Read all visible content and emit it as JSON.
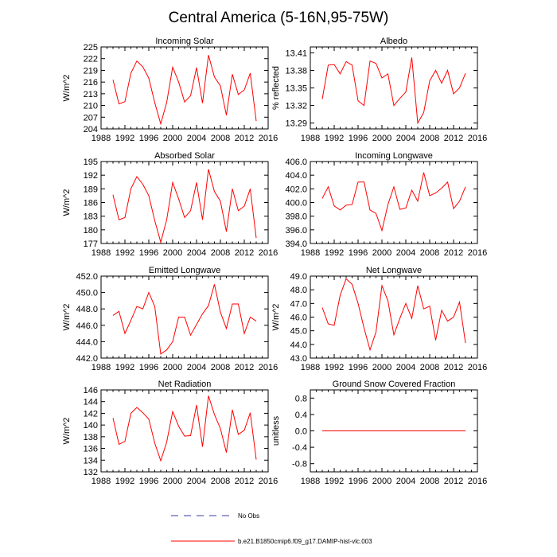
{
  "title": "Central America (5-16N,95-75W)",
  "legend": [
    {
      "label": "No Obs",
      "color": "#3a3aa0",
      "style": "dashed"
    },
    {
      "label": "b.e21.B1850cmip6.f09_g17.DAMIP-hist-vlc.003",
      "color": "#ff0000",
      "style": "solid"
    }
  ],
  "chart_data": [
    {
      "type": "line",
      "title": "Incoming Solar",
      "ylabel": "W/m^2",
      "xlim": [
        1988,
        2016
      ],
      "xticks": [
        1988,
        1992,
        1996,
        2000,
        2004,
        2008,
        2012,
        2016
      ],
      "xtick_labels": [
        "1988",
        "1992",
        "1996",
        "2000",
        "2004",
        "2008",
        "2012",
        "2016"
      ],
      "ylim": [
        204,
        225
      ],
      "yticks": [
        204,
        207,
        210,
        213,
        216,
        219,
        222,
        225
      ],
      "ytick_labels": [
        "204",
        "207",
        "210",
        "213",
        "216",
        "219",
        "222",
        "225"
      ],
      "series": [
        {
          "name": "b.e21.B1850cmip6.f09_g17.DAMIP-hist-vlc.003",
          "color": "#ff0000",
          "x": [
            1990,
            1991,
            1992,
            1993,
            1994,
            1995,
            1996,
            1997,
            1998,
            1999,
            2000,
            2001,
            2002,
            2003,
            2004,
            2005,
            2006,
            2007,
            2008,
            2009,
            2010,
            2011,
            2012,
            2013,
            2014
          ],
          "y": [
            216.6,
            210.4,
            211.0,
            218.3,
            221.4,
            219.9,
            217.0,
            210.7,
            205.3,
            210.8,
            219.8,
            216.0,
            210.9,
            212.5,
            219.7,
            210.6,
            222.9,
            217.3,
            215.0,
            207.5,
            218.0,
            212.8,
            214.0,
            218.3,
            206.0
          ]
        }
      ]
    },
    {
      "type": "line",
      "title": "Albedo",
      "ylabel": "% reflected",
      "xlim": [
        1988,
        2016
      ],
      "xticks": [
        1988,
        1992,
        1996,
        2000,
        2004,
        2008,
        2012,
        2016
      ],
      "xtick_labels": [
        "1988",
        "1992",
        "1996",
        "2000",
        "2004",
        "2008",
        "2012",
        "2016"
      ],
      "ylim": [
        13.28,
        13.42
      ],
      "yticks": [
        13.29,
        13.32,
        13.35,
        13.38,
        13.41
      ],
      "ytick_labels": [
        "13.29",
        "13.32",
        "13.35",
        "13.38",
        "13.41"
      ],
      "series": [
        {
          "name": "b.e21.B1850cmip6.f09_g17.DAMIP-hist-vlc.003",
          "color": "#ff0000",
          "x": [
            1990,
            1991,
            1992,
            1993,
            1994,
            1995,
            1996,
            1997,
            1998,
            1999,
            2000,
            2001,
            2002,
            2003,
            2004,
            2005,
            2006,
            2007,
            2008,
            2009,
            2010,
            2011,
            2012,
            2013,
            2014
          ],
          "y": [
            13.331,
            13.389,
            13.39,
            13.374,
            13.395,
            13.389,
            13.328,
            13.32,
            13.396,
            13.392,
            13.367,
            13.374,
            13.32,
            13.332,
            13.343,
            13.402,
            13.29,
            13.308,
            13.362,
            13.38,
            13.358,
            13.38,
            13.34,
            13.35,
            13.375
          ]
        }
      ]
    },
    {
      "type": "line",
      "title": "Absorbed Solar",
      "ylabel": "W/m^2",
      "xlim": [
        1988,
        2016
      ],
      "xticks": [
        1988,
        1992,
        1996,
        2000,
        2004,
        2008,
        2012,
        2016
      ],
      "xtick_labels": [
        "1988",
        "1992",
        "1996",
        "2000",
        "2004",
        "2008",
        "2012",
        "2016"
      ],
      "ylim": [
        177,
        195
      ],
      "yticks": [
        177,
        180,
        183,
        186,
        189,
        192,
        195
      ],
      "ytick_labels": [
        "177",
        "180",
        "183",
        "186",
        "189",
        "192",
        "195"
      ],
      "series": [
        {
          "name": "b.e21.B1850cmip6.f09_g17.DAMIP-hist-vlc.003",
          "color": "#ff0000",
          "x": [
            1990,
            1991,
            1992,
            1993,
            1994,
            1995,
            1996,
            1997,
            1998,
            1999,
            2000,
            2001,
            2002,
            2003,
            2004,
            2005,
            2006,
            2007,
            2008,
            2009,
            2010,
            2011,
            2012,
            2013,
            2014
          ],
          "y": [
            187.7,
            182.2,
            182.7,
            189.0,
            191.7,
            190.0,
            187.5,
            182.0,
            177.3,
            182.2,
            190.4,
            186.8,
            182.7,
            184.2,
            190.4,
            182.2,
            193.3,
            188.4,
            186.3,
            179.6,
            189.0,
            184.2,
            185.2,
            189.0,
            178.2
          ]
        }
      ]
    },
    {
      "type": "line",
      "title": "Incoming Longwave",
      "ylabel": "",
      "xlim": [
        1988,
        2016
      ],
      "xticks": [
        1988,
        1992,
        1996,
        2000,
        2004,
        2008,
        2012,
        2016
      ],
      "xtick_labels": [
        "1988",
        "1992",
        "1996",
        "2000",
        "2004",
        "2008",
        "2012",
        "2016"
      ],
      "ylim": [
        394,
        406
      ],
      "yticks": [
        394,
        396,
        398,
        400,
        402,
        404,
        406
      ],
      "ytick_labels": [
        "394.0",
        "396.0",
        "398.0",
        "400.0",
        "402.0",
        "404.0",
        "406.0"
      ],
      "series": [
        {
          "name": "b.e21.B1850cmip6.f09_g17.DAMIP-hist-vlc.003",
          "color": "#ff0000",
          "x": [
            1990,
            1991,
            1992,
            1993,
            1994,
            1995,
            1996,
            1997,
            1998,
            1999,
            2000,
            2001,
            2002,
            2003,
            2004,
            2005,
            2006,
            2007,
            2008,
            2009,
            2010,
            2011,
            2012,
            2013,
            2014
          ],
          "y": [
            400.6,
            402.3,
            399.5,
            398.9,
            399.6,
            399.7,
            403.0,
            403.0,
            398.9,
            398.4,
            395.9,
            399.7,
            402.3,
            399.0,
            399.2,
            401.8,
            400.2,
            404.4,
            401.0,
            401.4,
            402.1,
            403.0,
            399.1,
            400.2,
            402.3
          ]
        }
      ]
    },
    {
      "type": "line",
      "title": "Emitted Longwave",
      "ylabel": "W/m^2",
      "xlim": [
        1988,
        2016
      ],
      "xticks": [
        1988,
        1992,
        1996,
        2000,
        2004,
        2008,
        2012,
        2016
      ],
      "xtick_labels": [
        "1988",
        "1992",
        "1996",
        "2000",
        "2004",
        "2008",
        "2012",
        "2016"
      ],
      "ylim": [
        442,
        452
      ],
      "yticks": [
        442,
        444,
        446,
        448,
        450,
        452
      ],
      "ytick_labels": [
        "442.0",
        "444.0",
        "446.0",
        "448.0",
        "450.0",
        "452.0"
      ],
      "series": [
        {
          "name": "b.e21.B1850cmip6.f09_g17.DAMIP-hist-vlc.003",
          "color": "#ff0000",
          "x": [
            1990,
            1991,
            1992,
            1993,
            1994,
            1995,
            1996,
            1997,
            1998,
            1999,
            2000,
            2001,
            2002,
            2003,
            2004,
            2005,
            2006,
            2007,
            2008,
            2009,
            2010,
            2011,
            2012,
            2013,
            2014
          ],
          "y": [
            447.2,
            447.7,
            445.0,
            446.6,
            448.3,
            448.0,
            450.0,
            448.3,
            442.5,
            443.0,
            444.0,
            447.0,
            447.0,
            444.8,
            446.1,
            447.4,
            448.4,
            451.0,
            447.6,
            445.6,
            448.6,
            448.6,
            445.0,
            447.0,
            446.5
          ]
        }
      ]
    },
    {
      "type": "line",
      "title": "Net Longwave",
      "ylabel": "W/m^2",
      "xlim": [
        1988,
        2016
      ],
      "xticks": [
        1988,
        1992,
        1996,
        2000,
        2004,
        2008,
        2012,
        2016
      ],
      "xtick_labels": [
        "1988",
        "1992",
        "1996",
        "2000",
        "2004",
        "2008",
        "2012",
        "2016"
      ],
      "ylim": [
        43,
        49
      ],
      "yticks": [
        43,
        44,
        45,
        46,
        47,
        48,
        49
      ],
      "ytick_labels": [
        "43.0",
        "44.0",
        "45.0",
        "46.0",
        "47.0",
        "48.0",
        "49.0"
      ],
      "series": [
        {
          "name": "b.e21.B1850cmip6.f09_g17.DAMIP-hist-vlc.003",
          "color": "#ff0000",
          "x": [
            1990,
            1991,
            1992,
            1993,
            1994,
            1995,
            1996,
            1997,
            1998,
            1999,
            2000,
            2001,
            2002,
            2003,
            2004,
            2005,
            2006,
            2007,
            2008,
            2009,
            2010,
            2011,
            2012,
            2013,
            2014
          ],
          "y": [
            46.7,
            45.5,
            45.4,
            47.6,
            48.8,
            48.4,
            47.0,
            45.2,
            43.6,
            44.9,
            48.3,
            47.2,
            44.7,
            45.9,
            47.0,
            45.9,
            48.3,
            46.6,
            46.8,
            44.3,
            46.5,
            45.7,
            46.0,
            47.1,
            44.1
          ]
        }
      ]
    },
    {
      "type": "line",
      "title": "Net Radiation",
      "ylabel": "W/m^2",
      "xlim": [
        1988,
        2016
      ],
      "xticks": [
        1988,
        1992,
        1996,
        2000,
        2004,
        2008,
        2012,
        2016
      ],
      "xtick_labels": [
        "1988",
        "1992",
        "1996",
        "2000",
        "2004",
        "2008",
        "2012",
        "2016"
      ],
      "ylim": [
        132,
        146
      ],
      "yticks": [
        132,
        134,
        136,
        138,
        140,
        142,
        144,
        146
      ],
      "ytick_labels": [
        "132",
        "134",
        "136",
        "138",
        "140",
        "142",
        "144",
        "146"
      ],
      "series": [
        {
          "name": "b.e21.B1850cmip6.f09_g17.DAMIP-hist-vlc.003",
          "color": "#ff0000",
          "x": [
            1990,
            1991,
            1992,
            1993,
            1994,
            1995,
            1996,
            1997,
            1998,
            1999,
            2000,
            2001,
            2002,
            2003,
            2004,
            2005,
            2006,
            2007,
            2008,
            2009,
            2010,
            2011,
            2012,
            2013,
            2014
          ],
          "y": [
            141.2,
            136.7,
            137.2,
            142.0,
            143.0,
            142.1,
            141.0,
            136.9,
            133.9,
            137.1,
            142.3,
            139.8,
            138.1,
            138.2,
            143.4,
            136.3,
            145.0,
            141.8,
            139.4,
            135.3,
            142.6,
            138.4,
            139.1,
            142.1,
            134.1
          ]
        }
      ]
    },
    {
      "type": "line",
      "title": "Ground Snow Covered Fraction",
      "ylabel": "unitless",
      "xlim": [
        1988,
        2016
      ],
      "xticks": [
        1988,
        1992,
        1996,
        2000,
        2004,
        2008,
        2012,
        2016
      ],
      "xtick_labels": [
        "1988",
        "1992",
        "1996",
        "2000",
        "2004",
        "2008",
        "2012",
        "2016"
      ],
      "ylim": [
        -1.0,
        1.0
      ],
      "yticks": [
        -0.8,
        -0.4,
        0.0,
        0.4,
        0.8
      ],
      "ytick_labels": [
        "-0.8",
        "-0.4",
        "0.0",
        "0.4",
        "0.8"
      ],
      "series": [
        {
          "name": "b.e21.B1850cmip6.f09_g17.DAMIP-hist-vlc.003",
          "color": "#ff0000",
          "x": [
            1990,
            1991,
            1992,
            1993,
            1994,
            1995,
            1996,
            1997,
            1998,
            1999,
            2000,
            2001,
            2002,
            2003,
            2004,
            2005,
            2006,
            2007,
            2008,
            2009,
            2010,
            2011,
            2012,
            2013,
            2014
          ],
          "y": [
            0,
            0,
            0,
            0,
            0,
            0,
            0,
            0,
            0,
            0,
            0,
            0,
            0,
            0,
            0,
            0,
            0,
            0,
            0,
            0,
            0,
            0,
            0,
            0,
            0
          ]
        }
      ]
    }
  ]
}
